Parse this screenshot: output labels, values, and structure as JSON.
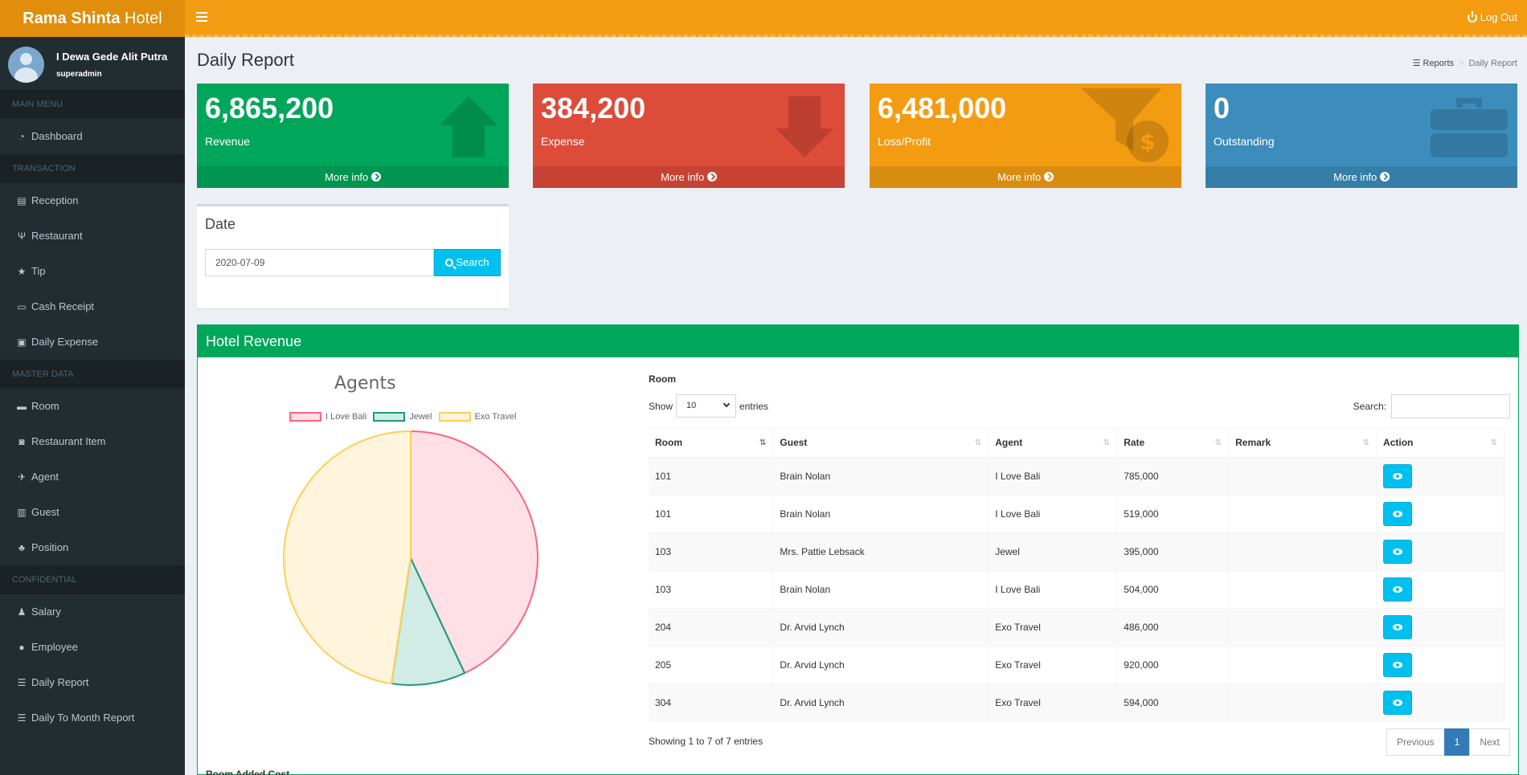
{
  "app": {
    "logo_bold": "Rama Shinta",
    "logo_rest": " Hotel",
    "logout_label": "Log Out"
  },
  "user": {
    "name": "I Dewa Gede Alit Putra",
    "role": "superadmin"
  },
  "sidebar": {
    "headers": [
      "MAIN MENU",
      "TRANSACTION",
      "MASTER DATA",
      "CONFIDENTIAL"
    ],
    "main": [
      {
        "label": "Dashboard",
        "icon": "dashboard-icon"
      }
    ],
    "transaction": [
      {
        "label": "Reception",
        "icon": "book-icon"
      },
      {
        "label": "Restaurant",
        "icon": "cutlery-icon"
      },
      {
        "label": "Tip",
        "icon": "star-icon"
      },
      {
        "label": "Cash Receipt",
        "icon": "money-icon"
      },
      {
        "label": "Daily Expense",
        "icon": "cash-icon"
      }
    ],
    "master": [
      {
        "label": "Room",
        "icon": "bed-icon"
      },
      {
        "label": "Restaurant Item",
        "icon": "database-icon"
      },
      {
        "label": "Agent",
        "icon": "plane-icon"
      },
      {
        "label": "Guest",
        "icon": "suitcase-icon"
      },
      {
        "label": "Position",
        "icon": "sitemap-icon"
      }
    ],
    "confidential": [
      {
        "label": "Salary",
        "icon": "salary-icon"
      },
      {
        "label": "Employee",
        "icon": "user-icon"
      },
      {
        "label": "Daily Report",
        "icon": "list-icon"
      },
      {
        "label": "Daily To Month Report",
        "icon": "list-icon"
      }
    ]
  },
  "page": {
    "title": "Daily Report",
    "breadcrumb": [
      "Reports",
      "Daily Report"
    ]
  },
  "stats": [
    {
      "value": "6,865,200",
      "label": "Revenue",
      "more": "More info",
      "color": "#00a65a"
    },
    {
      "value": "384,200",
      "label": "Expense",
      "more": "More info",
      "color": "#dd4b39"
    },
    {
      "value": "6,481,000",
      "label": "Loss/Profit",
      "more": "More info",
      "color": "#f39c12"
    },
    {
      "value": "0",
      "label": "Outstanding",
      "more": "More info",
      "color": "#3c8dbc"
    }
  ],
  "date_filter": {
    "title": "Date",
    "value": "2020-07-09",
    "button": "Search"
  },
  "revenue": {
    "title": "Hotel Revenue",
    "chart_data": {
      "type": "pie",
      "title": "Agents",
      "categories": [
        "I Love Bali",
        "Jewel",
        "Exo Travel"
      ],
      "values": [
        1808000,
        395000,
        2000000
      ],
      "colors": [
        "#ff6384",
        "#1a9c7e",
        "#ffce56"
      ]
    },
    "table": {
      "label": "Room",
      "show_label": "Show",
      "entries_value": "10",
      "entries_label": "entries",
      "search_label": "Search:",
      "columns": [
        "Room",
        "Guest",
        "Agent",
        "Rate",
        "Remark",
        "Action"
      ],
      "rows": [
        {
          "room": "101",
          "guest": "Brain Nolan",
          "agent": "I Love Bali",
          "rate": "785,000",
          "remark": ""
        },
        {
          "room": "101",
          "guest": "Brain Nolan",
          "agent": "I Love Bali",
          "rate": "519,000",
          "remark": ""
        },
        {
          "room": "103",
          "guest": "Mrs. Pattie Lebsack",
          "agent": "Jewel",
          "rate": "395,000",
          "remark": ""
        },
        {
          "room": "103",
          "guest": "Brain Nolan",
          "agent": "I Love Bali",
          "rate": "504,000",
          "remark": ""
        },
        {
          "room": "204",
          "guest": "Dr. Arvid Lynch",
          "agent": "Exo Travel",
          "rate": "486,000",
          "remark": ""
        },
        {
          "room": "205",
          "guest": "Dr. Arvid Lynch",
          "agent": "Exo Travel",
          "rate": "920,000",
          "remark": ""
        },
        {
          "room": "304",
          "guest": "Dr. Arvid Lynch",
          "agent": "Exo Travel",
          "rate": "594,000",
          "remark": ""
        }
      ],
      "info": "Showing 1 to 7 of 7 entries",
      "pager": {
        "prev": "Previous",
        "page": "1",
        "next": "Next"
      }
    },
    "room_added_label": "Room Added Cost"
  }
}
